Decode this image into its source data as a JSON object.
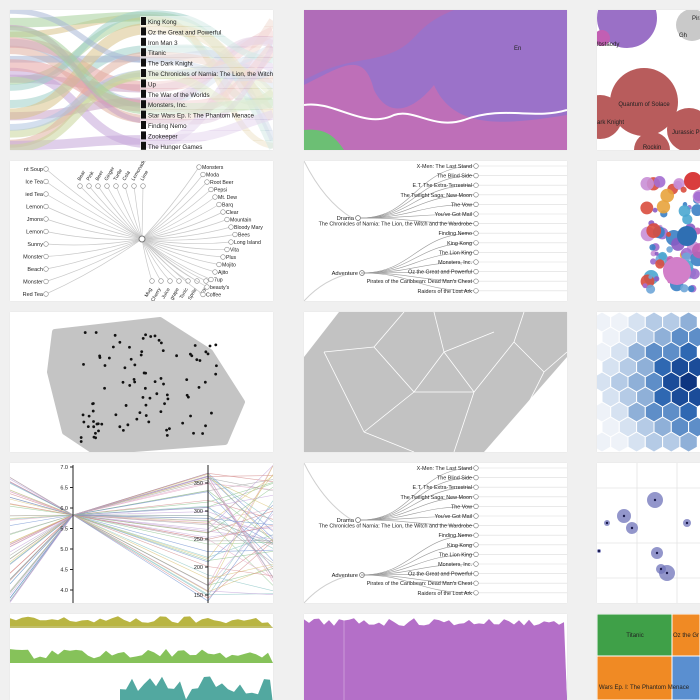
{
  "gallery": {
    "background": "#f0f0f0",
    "tile_background": "#ffffff"
  },
  "colors": {
    "purple": "#9b72c9",
    "pink": "#c774b6",
    "green": "#6cbf74",
    "red": "#b85c5c",
    "gray": "#bdbdbd",
    "blue_dark": "#1f3f8f",
    "blue_light": "#cfdcef",
    "olive": "#b9b542",
    "teal": "#52a8a0"
  },
  "tiles": {
    "movie_legend": {
      "items": [
        "King Kong",
        "Oz the Great and Powerful",
        "Iron Man 3",
        "Titanic",
        "The Dark Knight",
        "The Chronicles of Narnia: The Lion, the Witch and the Wardrobe",
        "Up",
        "The War of the Worlds",
        "Monsters, Inc.",
        "Star Wars Ep. I: The Phantom Menace",
        "Finding Nemo",
        "Zookeeper",
        "The Hunger Games"
      ]
    },
    "stream_label": "En",
    "bubbles": {
      "labels": [
        "Pira",
        "Gh",
        "lbstaody",
        "Quantum of Solace",
        "Jurassic Pa",
        "ark Knight",
        "Rockin"
      ]
    },
    "radial_tree": {
      "left_labels": [
        "nt Soup",
        "Ice Tea",
        "ied Tea",
        "Lemon",
        "Jmons",
        "Lemon",
        "Sunny",
        "Monster",
        "Beach",
        "Monster",
        "Red Tea"
      ],
      "mid_labels": [
        "Bear",
        "Pink",
        "Beer",
        "Ginger",
        "Turtle",
        "Cola",
        "Lemonade",
        "Lime",
        "Mug",
        "Cherry",
        "Juice",
        "grape",
        "Tonic",
        "Sprite",
        "Joy"
      ],
      "right_labels": [
        "Monsters",
        "Moda",
        "Root Beer",
        "Pepsi",
        "Mt. Dew",
        "Barq",
        "Clear",
        "Mountain",
        "Bloody Mary",
        "Bees",
        "Long Island",
        "Vita",
        "Plus",
        "Mojito",
        "Ajito",
        "7up",
        "beauty's",
        "Coffee"
      ]
    },
    "dendrogram": {
      "root": "Adventure",
      "branch": "Drama",
      "leaves": [
        "X-Men: The Last Stand",
        "The Blind Side",
        "E.T. The Extra-Terrestrial",
        "The Twilight Saga: New Moon",
        "The Vow",
        "You've Got Mail",
        "The Chronicles of Narnia: The Lion, the Witch and the Wardrobe",
        "Finding Nemo",
        "King Kong",
        "The Lion King",
        "Monsters, Inc.",
        "Oz the Great and Powerful",
        "Pirates of the Caribbean: Dead Man's Chest",
        "Raiders of the Lost Ark"
      ]
    },
    "parallel_coords": {
      "axis1_ticks": [
        "7.0",
        "6.5",
        "6.0",
        "5.5",
        "5.0",
        "4.5",
        "4.0"
      ],
      "axis2_ticks": [
        "350",
        "300",
        "250",
        "200",
        "150"
      ]
    },
    "treemap": {
      "labels": [
        "Titanic",
        "Oz the Gr",
        "Wars Ep. I: The Phantom Menace"
      ]
    }
  },
  "chart_data": [
    {
      "type": "line",
      "title": "",
      "series": [
        {
          "name": "King Kong",
          "values": []
        }
      ]
    },
    {
      "type": "area",
      "title": "",
      "labels": [
        "En"
      ]
    },
    {
      "type": "scatter",
      "title": "",
      "labels": [
        "Quantum of Solace",
        "Jurassic Pa",
        "ark Knight"
      ]
    },
    {
      "type": "scatter",
      "title": "",
      "note": "radial tree"
    },
    {
      "type": "scatter",
      "title": "",
      "note": "dendrogram",
      "categories": [
        "Drama",
        "Adventure"
      ]
    },
    {
      "type": "scatter",
      "title": "",
      "note": "bubble pack"
    },
    {
      "type": "scatter",
      "title": "",
      "note": "convex hull"
    },
    {
      "type": "scatter",
      "title": "",
      "note": "voronoi"
    },
    {
      "type": "heatmap",
      "title": "",
      "note": "hexbin"
    },
    {
      "type": "line",
      "title": "",
      "yticks": [
        7.0,
        6.5,
        6.0,
        5.5,
        5.0,
        4.5,
        4.0
      ],
      "yticks2": [
        350,
        300,
        250,
        200,
        150
      ]
    },
    {
      "type": "scatter",
      "title": "",
      "note": "dendrogram duplicate"
    },
    {
      "type": "scatter",
      "title": "",
      "note": "bubble scatter"
    },
    {
      "type": "area",
      "title": "",
      "note": "stacked area small multiples"
    },
    {
      "type": "area",
      "title": "",
      "note": "stacked area"
    },
    {
      "type": "table",
      "title": "",
      "labels": [
        "Titanic",
        "Oz the Gr",
        "Wars Ep. I: The Phantom Menace"
      ]
    }
  ]
}
